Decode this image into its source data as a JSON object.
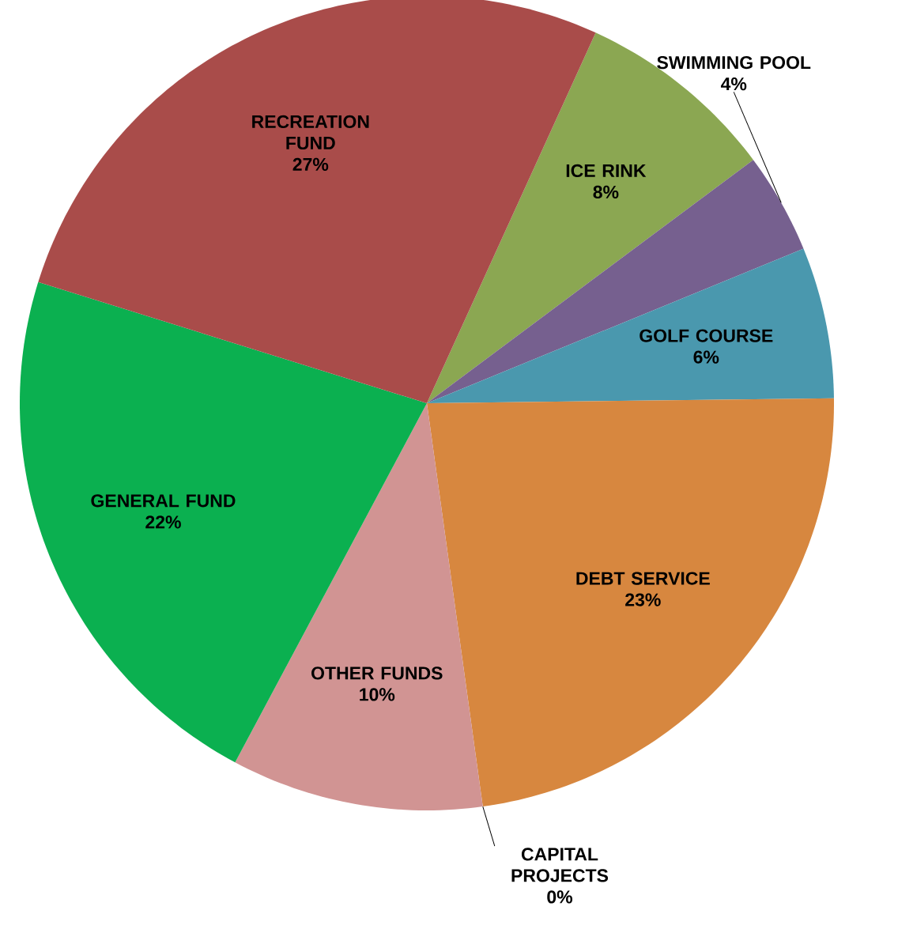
{
  "chart_data": {
    "type": "pie",
    "categories": [
      "ICE RINK",
      "SWIMMING POOL",
      "GOLF COURSE",
      "DEBT SERVICE",
      "CAPITAL PROJECTS",
      "OTHER FUNDS",
      "GENERAL FUND",
      "RECREATION FUND"
    ],
    "values": [
      8,
      4,
      6,
      23,
      0,
      10,
      22,
      27
    ],
    "colors": [
      "#8ba752",
      "#76608f",
      "#4a98ae",
      "#d7873f",
      "#9db3dc",
      "#d19493",
      "#0bb050",
      "#a94c4a"
    ],
    "value_labels": [
      "8%",
      "4%",
      "6%",
      "23%",
      "0%",
      "10%",
      "22%",
      "27%"
    ]
  }
}
